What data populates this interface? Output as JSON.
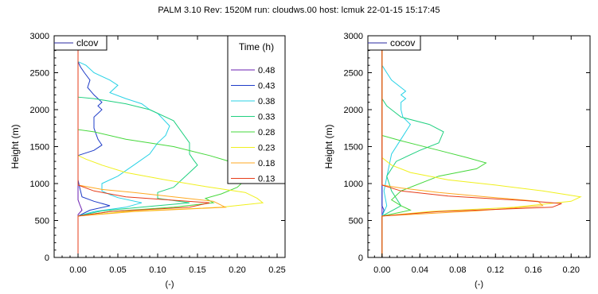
{
  "header": "PALM 3.10  Rev: 1520M  run: cloudws.00  host: lcmuk  22-01-15 15:17:45",
  "colors": {
    "0.48": "#6a1eb0",
    "0.43": "#1e3cc8",
    "0.38": "#28d2e6",
    "0.33": "#20d080",
    "0.28": "#46d83c",
    "0.23": "#f0f01e",
    "0.18": "#ffaa22",
    "0.13": "#e63c18"
  },
  "chart_data": [
    {
      "type": "line",
      "panel": "left",
      "title": "",
      "xlabel": "(-)",
      "ylabel": "Height (m)",
      "xlim": [
        -0.03,
        0.26
      ],
      "ylim": [
        0,
        3000
      ],
      "xticks": [
        "0.00",
        "0.05",
        "0.10",
        "0.15",
        "0.20",
        "0.25"
      ],
      "yticks": [
        "0",
        "500",
        "1000",
        "1500",
        "2000",
        "2500",
        "3000"
      ],
      "grid": false,
      "variable_label": "clcov",
      "legend": {
        "title": "Time (h)",
        "placement": "top-right",
        "entries": [
          "0.48",
          "0.43",
          "0.38",
          "0.33",
          "0.28",
          "0.23",
          "0.18",
          "0.13"
        ]
      },
      "series": [
        {
          "name": "0.48",
          "points": [
            [
              0.0,
              0
            ],
            [
              0.0,
              580
            ],
            [
              0.005,
              640
            ],
            [
              0.002,
              720
            ],
            [
              0.0,
              780
            ],
            [
              0.0,
              3000
            ]
          ]
        },
        {
          "name": "0.43",
          "points": [
            [
              0.0,
              0
            ],
            [
              0.0,
              560
            ],
            [
              0.015,
              640
            ],
            [
              0.04,
              700
            ],
            [
              0.02,
              760
            ],
            [
              0.005,
              820
            ],
            [
              0.002,
              950
            ],
            [
              0.0,
              1050
            ],
            [
              0.0,
              1380
            ],
            [
              0.02,
              1450
            ],
            [
              0.03,
              1520
            ],
            [
              0.025,
              1600
            ],
            [
              0.02,
              1750
            ],
            [
              0.02,
              1900
            ],
            [
              0.025,
              1950
            ],
            [
              0.03,
              2000
            ],
            [
              0.025,
              2050
            ],
            [
              0.03,
              2100
            ],
            [
              0.02,
              2200
            ],
            [
              0.012,
              2300
            ],
            [
              0.015,
              2400
            ],
            [
              0.008,
              2500
            ],
            [
              0.003,
              2580
            ],
            [
              0.0,
              2650
            ],
            [
              0.0,
              3000
            ]
          ]
        },
        {
          "name": "0.38",
          "points": [
            [
              0.0,
              0
            ],
            [
              0.0,
              560
            ],
            [
              0.02,
              620
            ],
            [
              0.06,
              680
            ],
            [
              0.08,
              740
            ],
            [
              0.05,
              810
            ],
            [
              0.04,
              850
            ],
            [
              0.03,
              900
            ],
            [
              0.03,
              1000
            ],
            [
              0.05,
              1100
            ],
            [
              0.07,
              1250
            ],
            [
              0.09,
              1400
            ],
            [
              0.1,
              1550
            ],
            [
              0.11,
              1650
            ],
            [
              0.115,
              1780
            ],
            [
              0.1,
              1950
            ],
            [
              0.09,
              2000
            ],
            [
              0.08,
              2080
            ],
            [
              0.06,
              2150
            ],
            [
              0.04,
              2230
            ],
            [
              0.05,
              2330
            ],
            [
              0.04,
              2400
            ],
            [
              0.02,
              2500
            ],
            [
              0.01,
              2600
            ],
            [
              0.0,
              2650
            ],
            [
              0.0,
              3000
            ]
          ]
        },
        {
          "name": "0.33",
          "points": [
            [
              0.0,
              0
            ],
            [
              0.0,
              560
            ],
            [
              0.03,
              630
            ],
            [
              0.09,
              690
            ],
            [
              0.14,
              740
            ],
            [
              0.1,
              800
            ],
            [
              0.1,
              880
            ],
            [
              0.12,
              950
            ],
            [
              0.13,
              1050
            ],
            [
              0.14,
              1150
            ],
            [
              0.15,
              1250
            ],
            [
              0.145,
              1320
            ],
            [
              0.14,
              1400
            ],
            [
              0.14,
              1550
            ],
            [
              0.13,
              1700
            ],
            [
              0.12,
              1850
            ],
            [
              0.09,
              2000
            ],
            [
              0.06,
              2080
            ],
            [
              0.02,
              2150
            ],
            [
              0.0,
              2170
            ],
            [
              0.0,
              3000
            ]
          ]
        },
        {
          "name": "0.28",
          "points": [
            [
              0.0,
              0
            ],
            [
              0.0,
              560
            ],
            [
              0.04,
              620
            ],
            [
              0.12,
              680
            ],
            [
              0.17,
              740
            ],
            [
              0.16,
              800
            ],
            [
              0.18,
              860
            ],
            [
              0.2,
              950
            ],
            [
              0.21,
              1050
            ],
            [
              0.2,
              1150
            ],
            [
              0.19,
              1300
            ],
            [
              0.165,
              1380
            ],
            [
              0.12,
              1500
            ],
            [
              0.06,
              1600
            ],
            [
              0.02,
              1700
            ],
            [
              0.0,
              1730
            ],
            [
              0.0,
              3000
            ]
          ]
        },
        {
          "name": "0.23",
          "points": [
            [
              0.0,
              0
            ],
            [
              0.0,
              560
            ],
            [
              0.06,
              620
            ],
            [
              0.18,
              680
            ],
            [
              0.232,
              740
            ],
            [
              0.225,
              800
            ],
            [
              0.21,
              880
            ],
            [
              0.16,
              960
            ],
            [
              0.11,
              1050
            ],
            [
              0.06,
              1150
            ],
            [
              0.03,
              1250
            ],
            [
              0.01,
              1330
            ],
            [
              0.0,
              1380
            ],
            [
              0.0,
              3000
            ]
          ]
        },
        {
          "name": "0.18",
          "points": [
            [
              0.0,
              0
            ],
            [
              0.0,
              560
            ],
            [
              0.07,
              620
            ],
            [
              0.185,
              680
            ],
            [
              0.17,
              760
            ],
            [
              0.12,
              820
            ],
            [
              0.07,
              880
            ],
            [
              0.03,
              920
            ],
            [
              0.0,
              980
            ],
            [
              0.0,
              3000
            ]
          ]
        },
        {
          "name": "0.13",
          "points": [
            [
              0.0,
              0
            ],
            [
              0.0,
              560
            ],
            [
              0.04,
              620
            ],
            [
              0.14,
              680
            ],
            [
              0.165,
              740
            ],
            [
              0.06,
              820
            ],
            [
              0.02,
              900
            ],
            [
              0.0,
              980
            ],
            [
              0.0,
              3000
            ]
          ]
        }
      ]
    },
    {
      "type": "line",
      "panel": "right",
      "title": "",
      "xlabel": "(-)",
      "ylabel": "Height (m)",
      "xlim": [
        -0.015,
        0.22
      ],
      "ylim": [
        0,
        3000
      ],
      "xticks": [
        "0.00",
        "0.04",
        "0.08",
        "0.12",
        "0.16",
        "0.20"
      ],
      "yticks": [
        "0",
        "500",
        "1000",
        "1500",
        "2000",
        "2500",
        "3000"
      ],
      "grid": false,
      "variable_label": "cocov",
      "series": [
        {
          "name": "0.48",
          "points": [
            [
              0.0,
              0
            ],
            [
              0.0,
              3000
            ]
          ]
        },
        {
          "name": "0.43",
          "points": [
            [
              0.0,
              0
            ],
            [
              0.0,
              560
            ],
            [
              0.002,
              640
            ],
            [
              0.0,
              700
            ],
            [
              0.0,
              3000
            ]
          ]
        },
        {
          "name": "0.38",
          "points": [
            [
              0.0,
              0
            ],
            [
              0.0,
              560
            ],
            [
              0.005,
              700
            ],
            [
              0.002,
              900
            ],
            [
              0.01,
              1400
            ],
            [
              0.02,
              1600
            ],
            [
              0.025,
              1700
            ],
            [
              0.03,
              1800
            ],
            [
              0.022,
              1900
            ],
            [
              0.02,
              2000
            ],
            [
              0.02,
              2100
            ],
            [
              0.025,
              2150
            ],
            [
              0.02,
              2200
            ],
            [
              0.025,
              2250
            ],
            [
              0.02,
              2300
            ],
            [
              0.01,
              2400
            ],
            [
              0.005,
              2500
            ],
            [
              0.0,
              2600
            ],
            [
              0.0,
              3000
            ]
          ]
        },
        {
          "name": "0.33",
          "points": [
            [
              0.0,
              0
            ],
            [
              0.0,
              560
            ],
            [
              0.02,
              700
            ],
            [
              0.01,
              900
            ],
            [
              0.005,
              1100
            ],
            [
              0.015,
              1300
            ],
            [
              0.04,
              1450
            ],
            [
              0.06,
              1550
            ],
            [
              0.065,
              1700
            ],
            [
              0.05,
              1800
            ],
            [
              0.02,
              1900
            ],
            [
              0.01,
              2000
            ],
            [
              0.005,
              2050
            ],
            [
              0.0,
              2150
            ],
            [
              0.0,
              3000
            ]
          ]
        },
        {
          "name": "0.28",
          "points": [
            [
              0.0,
              0
            ],
            [
              0.0,
              560
            ],
            [
              0.03,
              640
            ],
            [
              0.02,
              700
            ],
            [
              0.01,
              780
            ],
            [
              0.02,
              900
            ],
            [
              0.06,
              1100
            ],
            [
              0.1,
              1200
            ],
            [
              0.11,
              1280
            ],
            [
              0.09,
              1350
            ],
            [
              0.06,
              1450
            ],
            [
              0.02,
              1580
            ],
            [
              0.0,
              1650
            ],
            [
              0.0,
              3000
            ]
          ]
        },
        {
          "name": "0.23",
          "points": [
            [
              0.0,
              0
            ],
            [
              0.0,
              560
            ],
            [
              0.05,
              620
            ],
            [
              0.14,
              680
            ],
            [
              0.2,
              760
            ],
            [
              0.21,
              820
            ],
            [
              0.17,
              900
            ],
            [
              0.12,
              980
            ],
            [
              0.07,
              1050
            ],
            [
              0.03,
              1150
            ],
            [
              0.01,
              1250
            ],
            [
              0.0,
              1350
            ],
            [
              0.0,
              3000
            ]
          ]
        },
        {
          "name": "0.18",
          "points": [
            [
              0.0,
              0
            ],
            [
              0.0,
              560
            ],
            [
              0.1,
              630
            ],
            [
              0.17,
              700
            ],
            [
              0.165,
              760
            ],
            [
              0.11,
              820
            ],
            [
              0.06,
              880
            ],
            [
              0.02,
              940
            ],
            [
              0.0,
              980
            ],
            [
              0.0,
              3000
            ]
          ]
        },
        {
          "name": "0.13",
          "points": [
            [
              0.0,
              0
            ],
            [
              0.0,
              560
            ],
            [
              0.06,
              620
            ],
            [
              0.18,
              680
            ],
            [
              0.19,
              730
            ],
            [
              0.15,
              770
            ],
            [
              0.07,
              830
            ],
            [
              0.02,
              900
            ],
            [
              0.0,
              980
            ],
            [
              0.0,
              3000
            ]
          ]
        }
      ]
    }
  ]
}
